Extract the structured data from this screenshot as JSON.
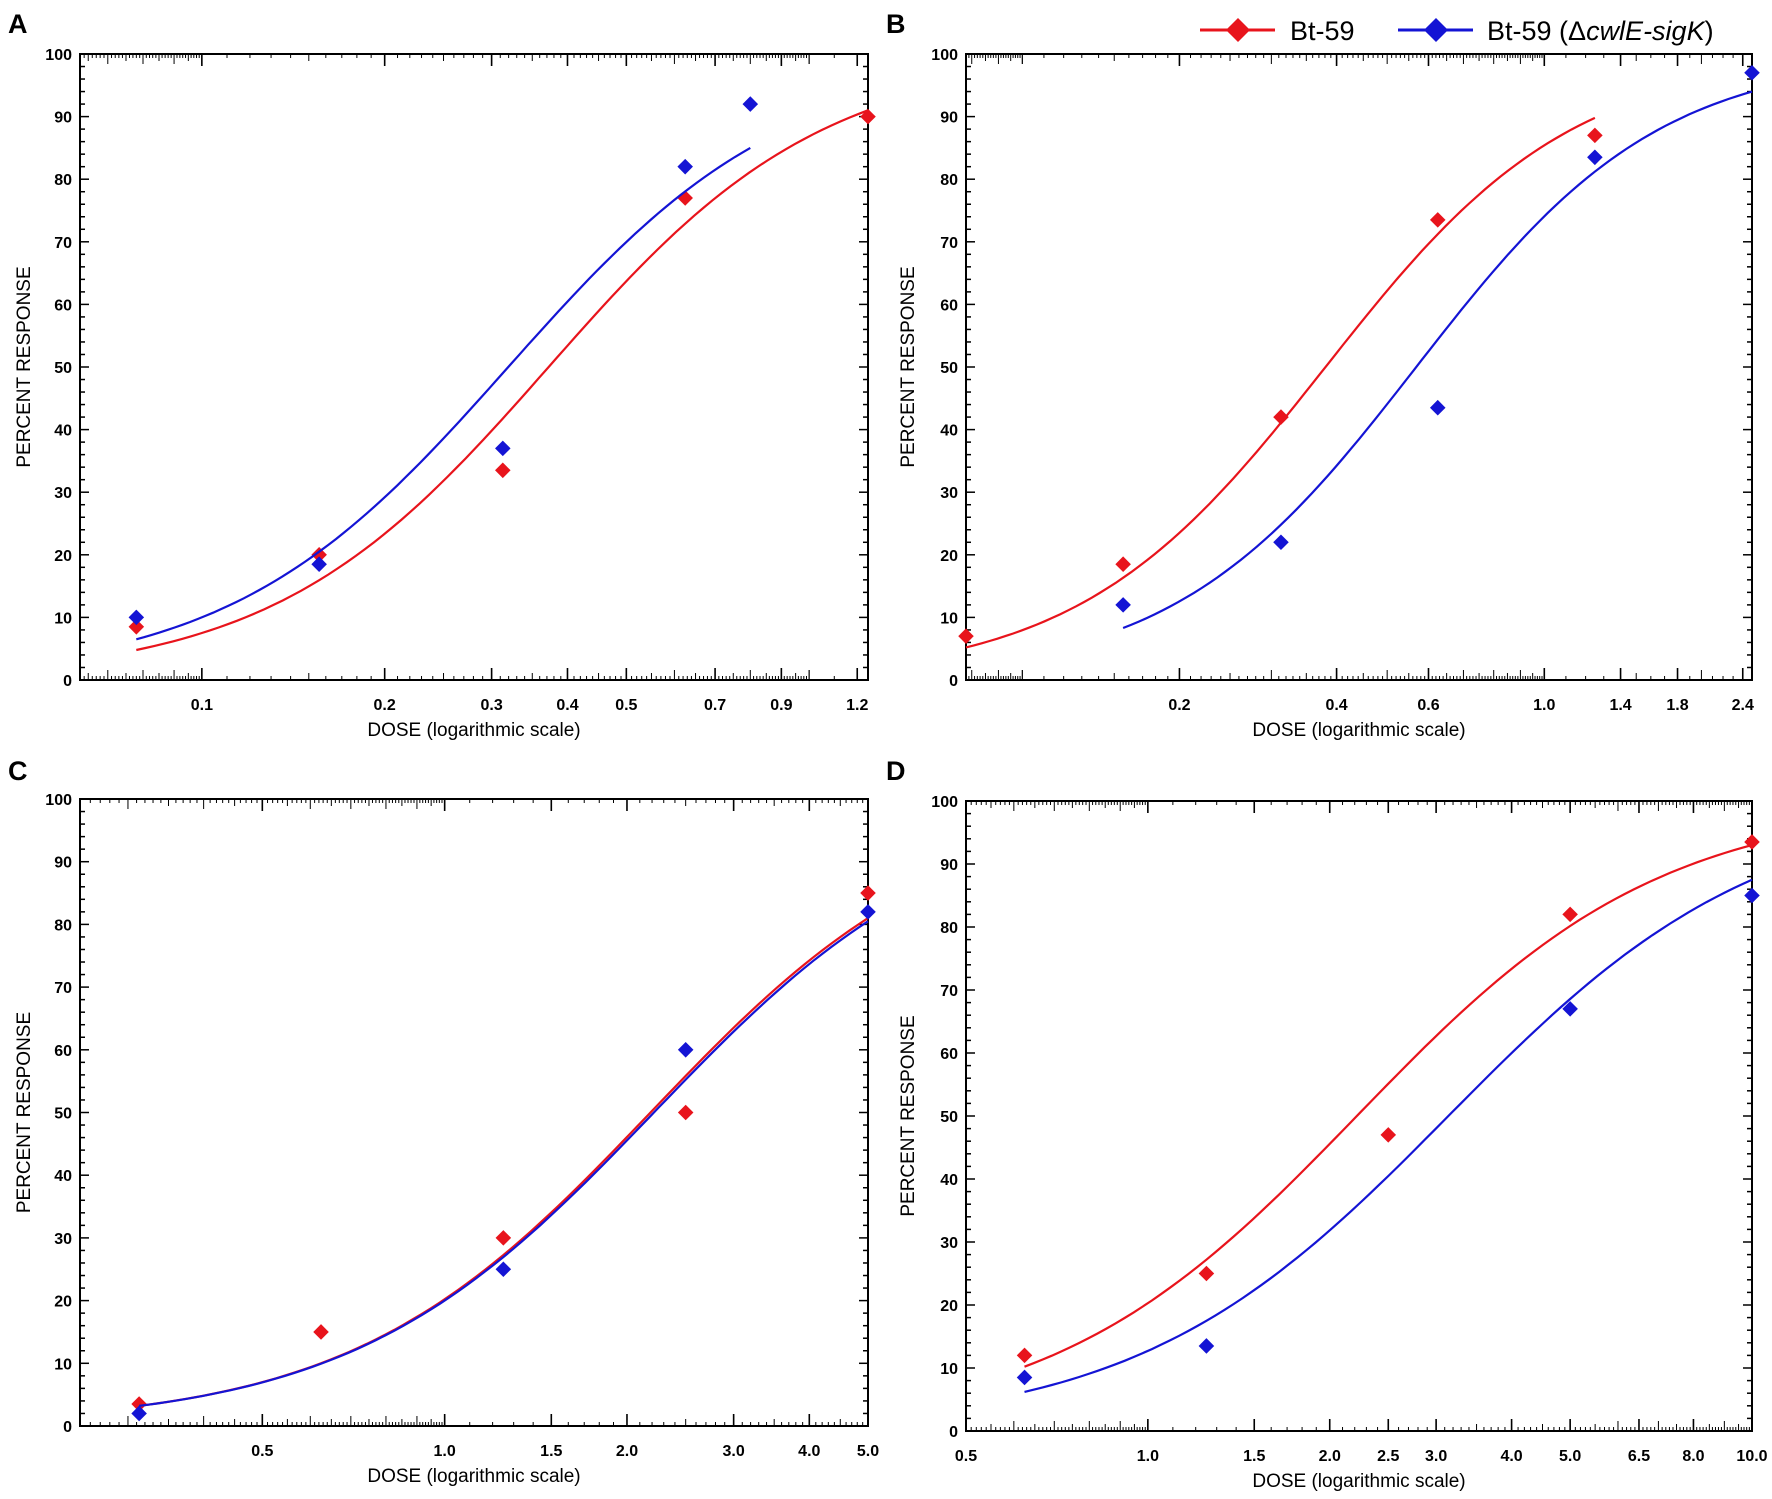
{
  "legend": {
    "entries": [
      {
        "label_prefix": "Bt-59",
        "label_italic": "",
        "label_suffix": "",
        "color": "#e8141c"
      },
      {
        "label_prefix": "Bt-59 (Δ",
        "label_italic": "cwlE-sigK",
        "label_suffix": ")",
        "color": "#1414d4"
      }
    ]
  },
  "chart_data": [
    {
      "type": "scatter",
      "panel": "A",
      "xscale": "log",
      "xlabel": "DOSE  (logarithmic scale)",
      "ylabel": "PERCENT  RESPONSE",
      "ylim": [
        0,
        100
      ],
      "xlim": [
        0.063,
        1.25
      ],
      "yticks": [
        "0",
        "10",
        "20",
        "30",
        "40",
        "50",
        "60",
        "70",
        "80",
        "90",
        "100"
      ],
      "xticks": [
        {
          "label": "0.1",
          "value": 0.1
        },
        {
          "label": "0.2",
          "value": 0.2
        },
        {
          "label": "0.3",
          "value": 0.3
        },
        {
          "label": "0.4",
          "value": 0.4
        },
        {
          "label": "0.5",
          "value": 0.5
        },
        {
          "label": "0.7",
          "value": 0.7
        },
        {
          "label": "0.9",
          "value": 0.9
        },
        {
          "label": "1.2",
          "value": 1.2
        }
      ],
      "series": [
        {
          "name": "Bt-59",
          "color": "#e8141c",
          "x": [
            0.078,
            0.156,
            0.313,
            0.625,
            1.25
          ],
          "y": [
            8.5,
            20,
            33.5,
            77,
            90
          ],
          "fit_x": [
            0.078,
            1.25
          ],
          "fit_y": [
            4.8,
            91
          ]
        },
        {
          "name": "Bt-59 (ΔcwlE-sigK)",
          "color": "#1414d4",
          "x": [
            0.078,
            0.156,
            0.313,
            0.625,
            0.8
          ],
          "y": [
            10,
            18.5,
            37,
            82,
            92
          ],
          "fit_x": [
            0.078,
            0.8
          ],
          "fit_y": [
            6.5,
            85
          ]
        }
      ]
    },
    {
      "type": "scatter",
      "panel": "B",
      "xscale": "log",
      "xlabel": "DOSE  (logarithmic scale)",
      "ylabel": "PERCENT  RESPONSE",
      "ylim": [
        0,
        100
      ],
      "xlim": [
        0.078,
        2.5
      ],
      "yticks": [
        "0",
        "10",
        "20",
        "30",
        "40",
        "50",
        "60",
        "70",
        "80",
        "90",
        "100"
      ],
      "xticks": [
        {
          "label": "0.2",
          "value": 0.2
        },
        {
          "label": "0.4",
          "value": 0.4
        },
        {
          "label": "0.6",
          "value": 0.6
        },
        {
          "label": "1.0",
          "value": 1.0
        },
        {
          "label": "1.4",
          "value": 1.4
        },
        {
          "label": "1.8",
          "value": 1.8
        },
        {
          "label": "2.4",
          "value": 2.4
        }
      ],
      "series": [
        {
          "name": "Bt-59",
          "color": "#e8141c",
          "x": [
            0.078,
            0.156,
            0.313,
            0.625,
            1.25
          ],
          "y": [
            7,
            18.5,
            42,
            73.5,
            87
          ],
          "fit_x": [
            0.078,
            1.25
          ],
          "fit_y": [
            5.2,
            89.8
          ]
        },
        {
          "name": "Bt-59 (ΔcwlE-sigK)",
          "color": "#1414d4",
          "x": [
            0.156,
            0.313,
            0.625,
            1.25,
            2.5
          ],
          "y": [
            12,
            22,
            43.5,
            83.5,
            97
          ],
          "fit_x": [
            0.156,
            2.5
          ],
          "fit_y": [
            8.3,
            94
          ]
        }
      ]
    },
    {
      "type": "scatter",
      "panel": "C",
      "xscale": "log",
      "xlabel": "DOSE  (logarithmic scale)",
      "ylabel": "PERCENT  RESPONSE",
      "ylim": [
        0,
        100
      ],
      "xlim": [
        0.25,
        5.0
      ],
      "yticks": [
        "0",
        "10",
        "20",
        "30",
        "40",
        "50",
        "60",
        "70",
        "80",
        "90",
        "100"
      ],
      "xticks": [
        {
          "label": "0.5",
          "value": 0.5
        },
        {
          "label": "1.0",
          "value": 1.0
        },
        {
          "label": "1.5",
          "value": 1.5
        },
        {
          "label": "2.0",
          "value": 2.0
        },
        {
          "label": "3.0",
          "value": 3.0
        },
        {
          "label": "4.0",
          "value": 4.0
        },
        {
          "label": "5.0",
          "value": 5.0
        }
      ],
      "series": [
        {
          "name": "Bt-59",
          "color": "#e8141c",
          "x": [
            0.313,
            0.625,
            1.25,
            2.5,
            5.0
          ],
          "y": [
            3.5,
            15,
            30,
            50,
            85
          ],
          "fit_x": [
            0.313,
            5.0
          ],
          "fit_y": [
            3.2,
            81
          ]
        },
        {
          "name": "Bt-59 (ΔcwlE-sigK)",
          "color": "#1414d4",
          "x": [
            0.313,
            1.25,
            2.5,
            5.0
          ],
          "y": [
            2,
            25,
            60,
            82
          ],
          "fit_x": [
            0.313,
            5.0
          ],
          "fit_y": [
            3.2,
            80.5
          ]
        }
      ]
    },
    {
      "type": "scatter",
      "panel": "D",
      "xscale": "log",
      "xlabel": "DOSE  (logarithmic scale)",
      "ylabel": "PERCENT  RESPONSE",
      "ylim": [
        0,
        100
      ],
      "xlim": [
        0.5,
        10.0
      ],
      "yticks": [
        "0",
        "10",
        "20",
        "30",
        "40",
        "50",
        "60",
        "70",
        "80",
        "90",
        "100"
      ],
      "xticks": [
        {
          "label": "0.5",
          "value": 0.5
        },
        {
          "label": "1.0",
          "value": 1.0
        },
        {
          "label": "1.5",
          "value": 1.5
        },
        {
          "label": "2.0",
          "value": 2.0
        },
        {
          "label": "2.5",
          "value": 2.5
        },
        {
          "label": "3.0",
          "value": 3.0
        },
        {
          "label": "4.0",
          "value": 4.0
        },
        {
          "label": "5.0",
          "value": 5.0
        },
        {
          "label": "6.5",
          "value": 6.5
        },
        {
          "label": "8.0",
          "value": 8.0
        },
        {
          "label": "10.0",
          "value": 10.0
        }
      ],
      "series": [
        {
          "name": "Bt-59",
          "color": "#e8141c",
          "x": [
            0.625,
            1.25,
            2.5,
            5.0,
            10.0
          ],
          "y": [
            12,
            25,
            47,
            82,
            93.5
          ],
          "fit_x": [
            0.625,
            10.0
          ],
          "fit_y": [
            10.2,
            93
          ]
        },
        {
          "name": "Bt-59 (ΔcwlE-sigK)",
          "color": "#1414d4",
          "x": [
            0.625,
            1.25,
            5.0,
            10.0
          ],
          "y": [
            8.5,
            13.5,
            67,
            85
          ],
          "fit_x": [
            0.625,
            10.0
          ],
          "fit_y": [
            6.2,
            87.5
          ]
        }
      ]
    }
  ]
}
